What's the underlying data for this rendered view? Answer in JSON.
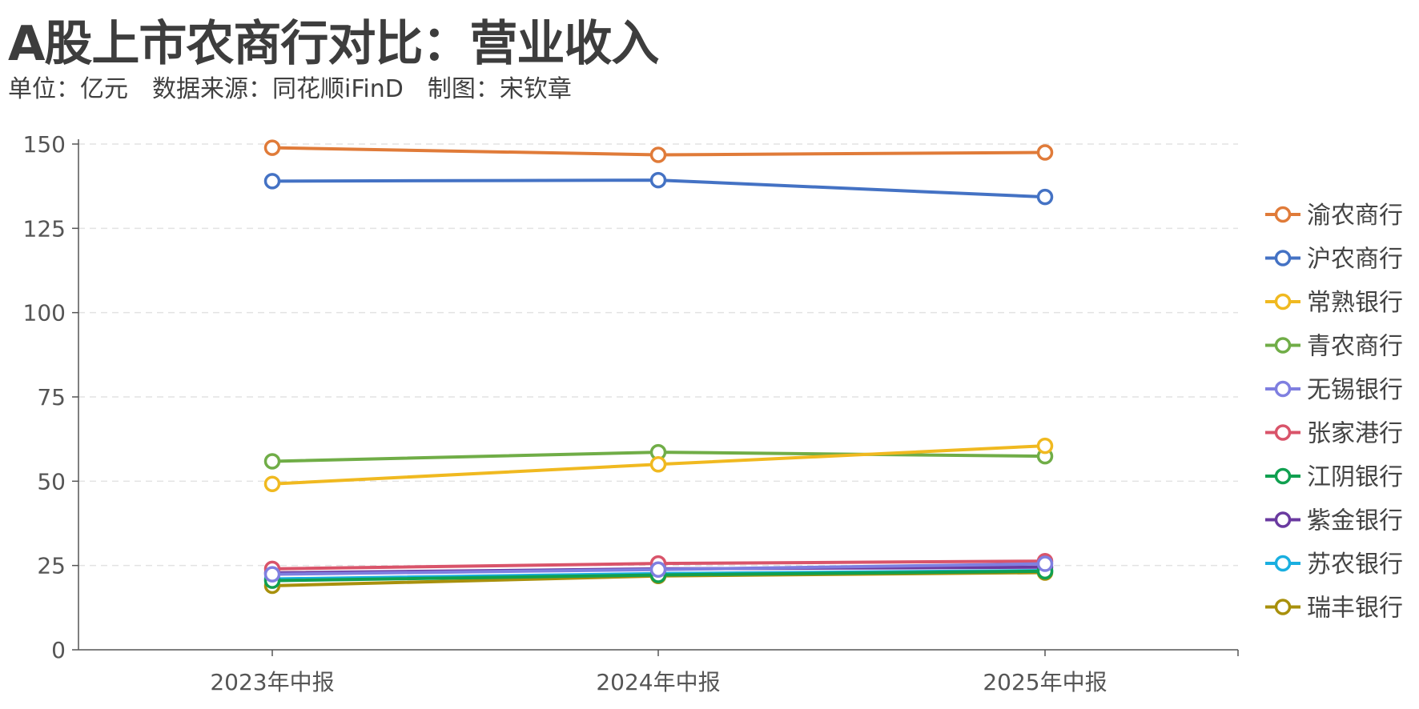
{
  "header": {
    "title": "A股上市农商行对比：营业收入",
    "subtitle": "单位：亿元　数据来源：同花顺iFinD　制图：宋钦章"
  },
  "chart_data": {
    "type": "line",
    "title": "A股上市农商行对比：营业收入",
    "xlabel": "",
    "ylabel": "",
    "categories": [
      "2023年中报",
      "2024年中报",
      "2025年中报"
    ],
    "ylim": [
      0,
      150
    ],
    "yticks": [
      0,
      25,
      50,
      75,
      100,
      125,
      150
    ],
    "grid": "horizontal-dashed",
    "legend_position": "right",
    "series": [
      {
        "name": "渝农商行",
        "color": "#e07b39",
        "values": [
          148.9,
          146.8,
          147.5
        ]
      },
      {
        "name": "沪农商行",
        "color": "#4472c4",
        "values": [
          139.0,
          139.3,
          134.3
        ]
      },
      {
        "name": "常熟银行",
        "color": "#f0b920",
        "values": [
          49.2,
          55.0,
          60.5
        ]
      },
      {
        "name": "青农商行",
        "color": "#70ad47",
        "values": [
          55.9,
          58.6,
          57.4
        ]
      },
      {
        "name": "无锡银行",
        "color": "#7f7fe0",
        "values": [
          22.4,
          23.8,
          25.5
        ]
      },
      {
        "name": "张家港行",
        "color": "#d9546a",
        "values": [
          24.0,
          25.6,
          26.3
        ]
      },
      {
        "name": "江阴银行",
        "color": "#10a050",
        "values": [
          20.5,
          22.2,
          23.3
        ]
      },
      {
        "name": "紫金银行",
        "color": "#6a3aa0",
        "values": [
          22.8,
          24.0,
          24.5
        ]
      },
      {
        "name": "苏农银行",
        "color": "#1aafe0",
        "values": [
          21.0,
          22.6,
          23.5
        ]
      },
      {
        "name": "瑞丰银行",
        "color": "#a8900c",
        "values": [
          19.0,
          21.9,
          22.9
        ]
      }
    ]
  }
}
